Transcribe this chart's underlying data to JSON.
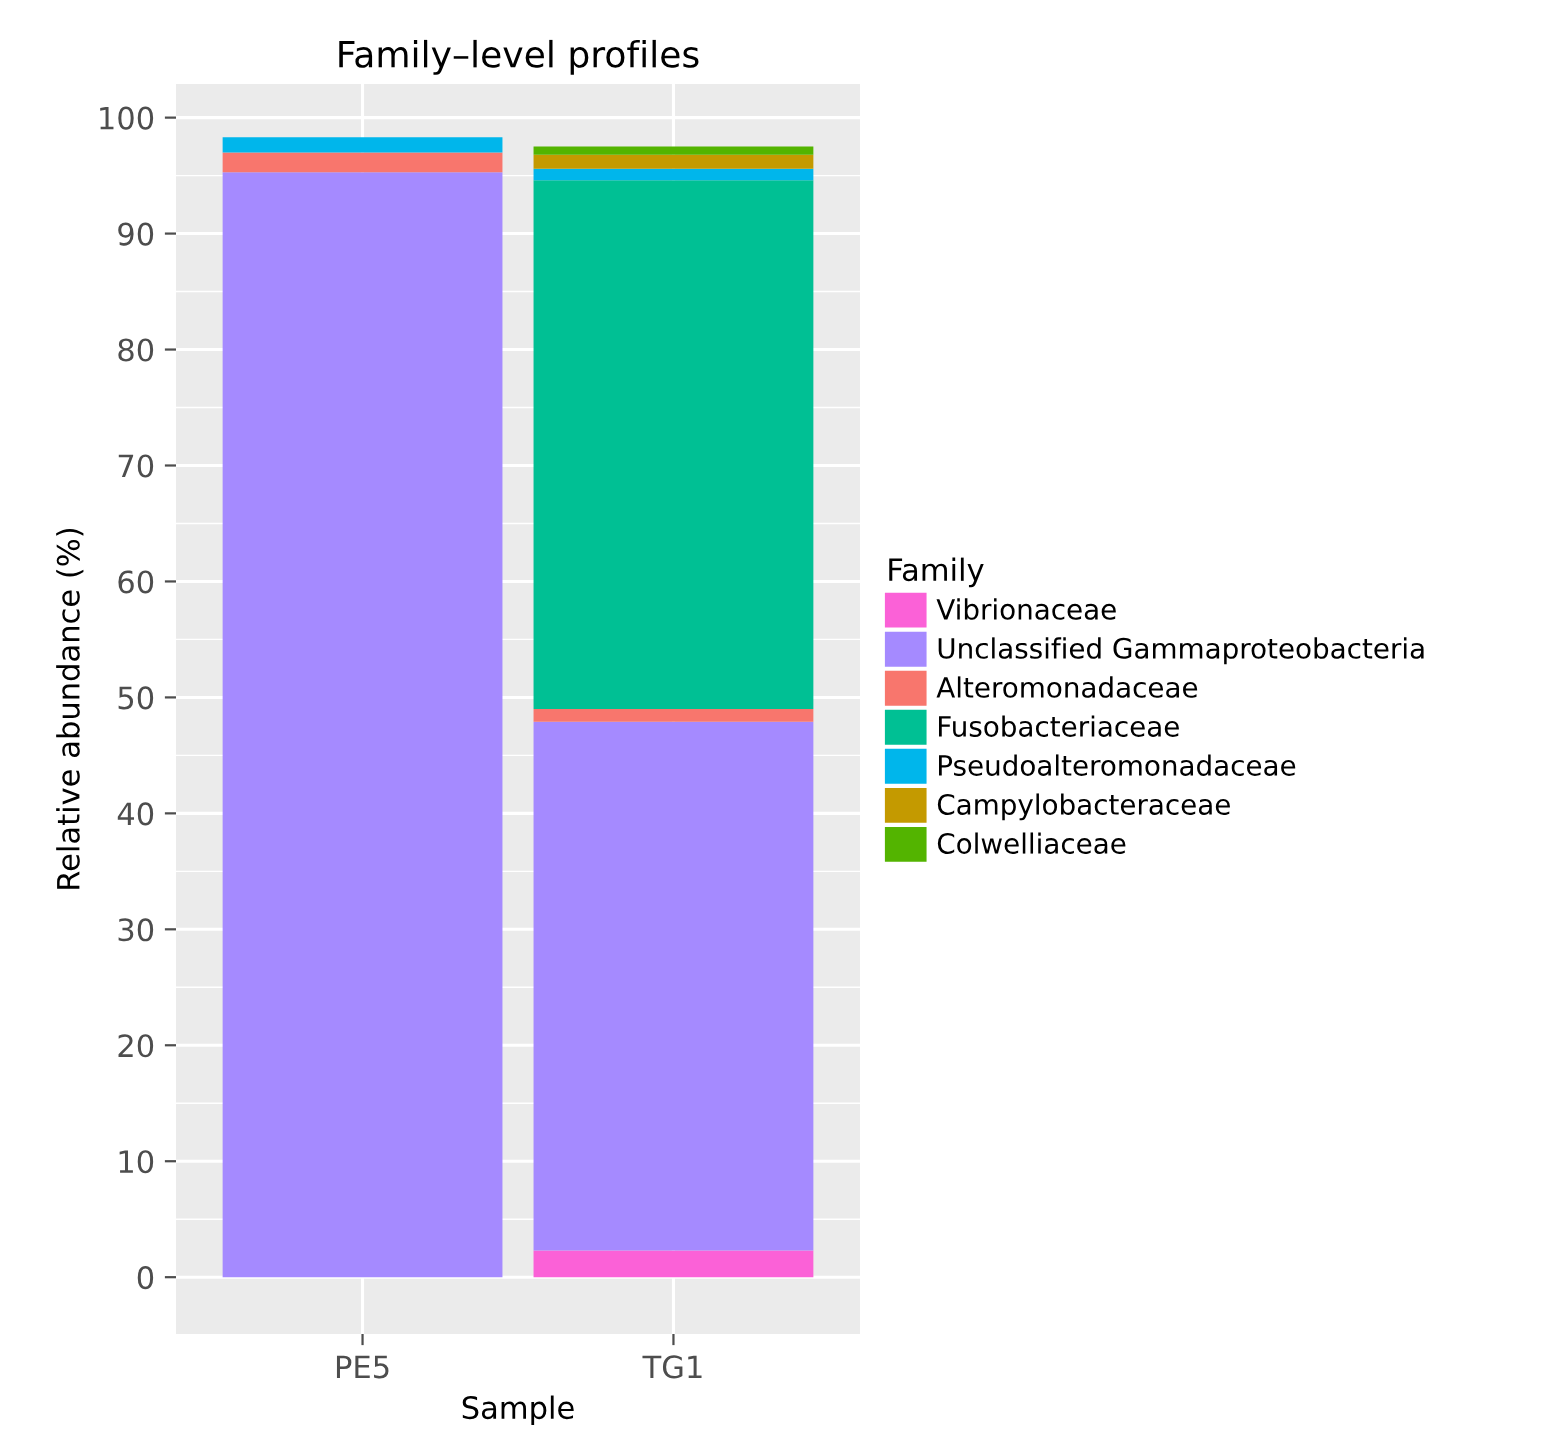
{
  "chart_data": {
    "type": "bar",
    "title": "Family–level profiles",
    "xlabel": "Sample",
    "ylabel": "Relative abundance (%)",
    "legend_title": "Family",
    "categories": [
      "PE5",
      "TG1"
    ],
    "stacked": true,
    "series": [
      {
        "name": "Vibrionaceae",
        "color": "#fb61d7",
        "values": [
          0,
          2.3
        ]
      },
      {
        "name": "Unclassified Gammaproteobacteria",
        "color": "#a58aff",
        "values": [
          95.3,
          45.6
        ]
      },
      {
        "name": "Alteromonadaceae",
        "color": "#f8766d",
        "values": [
          1.7,
          1.1
        ]
      },
      {
        "name": "Fusobacteriaceae",
        "color": "#00c094",
        "values": [
          0,
          45.6
        ]
      },
      {
        "name": "Pseudoalteromonadaceae",
        "color": "#00b6eb",
        "values": [
          1.3,
          1.0
        ]
      },
      {
        "name": "Campylobacteraceae",
        "color": "#c49a00",
        "values": [
          0,
          1.2
        ]
      },
      {
        "name": "Colwelliaceae",
        "color": "#53b400",
        "values": [
          0,
          0.7
        ]
      }
    ],
    "ylim": [
      -4.9,
      102.9
    ],
    "yticks": [
      0,
      10,
      20,
      30,
      40,
      50,
      60,
      70,
      80,
      90,
      100
    ],
    "grid": true,
    "legend": "right"
  }
}
